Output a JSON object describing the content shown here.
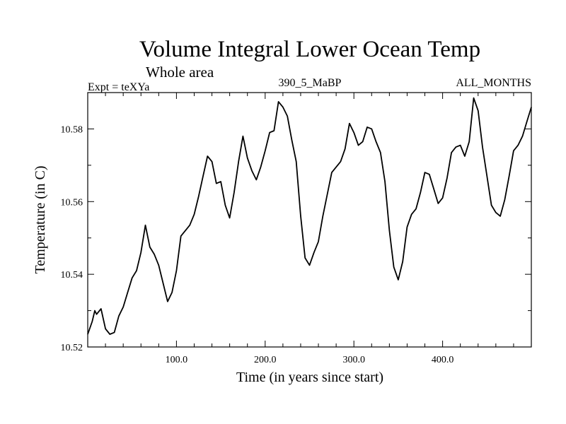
{
  "chart_data": {
    "type": "line",
    "title": "Volume Integral Lower Ocean Temp",
    "subtitle": "Whole area",
    "left_label": "Expt = teXYa",
    "center_label": "390_5_MaBP",
    "right_label": "ALL_MONTHS",
    "xlabel": "Time (in years since start)",
    "ylabel": "Temperature (in C)",
    "xlim": [
      0,
      500
    ],
    "ylim": [
      10.52,
      10.59
    ],
    "x_ticks": [
      100,
      200,
      300,
      400
    ],
    "x_tick_labels": [
      "100.0",
      "200.0",
      "300.0",
      "400.0"
    ],
    "y_ticks": [
      10.52,
      10.54,
      10.56,
      10.58
    ],
    "y_tick_labels": [
      "10.52",
      "10.54",
      "10.56",
      "10.58"
    ],
    "grid": false,
    "series": [
      {
        "color": "#000000",
        "x": [
          0,
          5,
          8,
          10,
          15,
          20,
          25,
          30,
          35,
          40,
          45,
          50,
          55,
          60,
          65,
          70,
          75,
          80,
          85,
          90,
          95,
          100,
          105,
          110,
          115,
          120,
          125,
          130,
          135,
          140,
          145,
          150,
          155,
          160,
          165,
          170,
          175,
          180,
          185,
          190,
          195,
          200,
          205,
          210,
          215,
          220,
          225,
          230,
          235,
          240,
          245,
          250,
          255,
          260,
          265,
          270,
          275,
          280,
          285,
          290,
          295,
          300,
          305,
          310,
          315,
          320,
          325,
          330,
          335,
          340,
          345,
          350,
          355,
          360,
          365,
          370,
          375,
          380,
          385,
          390,
          395,
          400,
          405,
          410,
          415,
          420,
          425,
          430,
          435,
          440,
          445,
          450,
          455,
          460,
          465,
          470,
          475,
          480,
          485,
          490,
          495,
          500
        ],
        "values": [
          10.5235,
          10.527,
          10.53,
          10.529,
          10.5305,
          10.525,
          10.5235,
          10.524,
          10.5285,
          10.531,
          10.535,
          10.539,
          10.541,
          10.546,
          10.5535,
          10.5475,
          10.5455,
          10.5425,
          10.5375,
          10.5325,
          10.535,
          10.541,
          10.5505,
          10.552,
          10.5535,
          10.5565,
          10.5615,
          10.567,
          10.5725,
          10.571,
          10.565,
          10.5655,
          10.559,
          10.5555,
          10.5625,
          10.571,
          10.578,
          10.572,
          10.5685,
          10.566,
          10.5695,
          10.574,
          10.579,
          10.5795,
          10.5875,
          10.586,
          10.5835,
          10.577,
          10.571,
          10.556,
          10.5445,
          10.5425,
          10.546,
          10.549,
          10.556,
          10.562,
          10.568,
          10.5695,
          10.571,
          10.5745,
          10.5815,
          10.579,
          10.5755,
          10.5765,
          10.5805,
          10.58,
          10.5765,
          10.5735,
          10.5655,
          10.552,
          10.542,
          10.5385,
          10.5435,
          10.553,
          10.5565,
          10.558,
          10.5625,
          10.568,
          10.5675,
          10.5635,
          10.5595,
          10.561,
          10.5665,
          10.5735,
          10.575,
          10.5755,
          10.5725,
          10.5765,
          10.5885,
          10.585,
          10.575,
          10.567,
          10.559,
          10.557,
          10.556,
          10.5605,
          10.567,
          10.574,
          10.5755,
          10.578,
          10.582,
          10.586
        ]
      }
    ]
  }
}
